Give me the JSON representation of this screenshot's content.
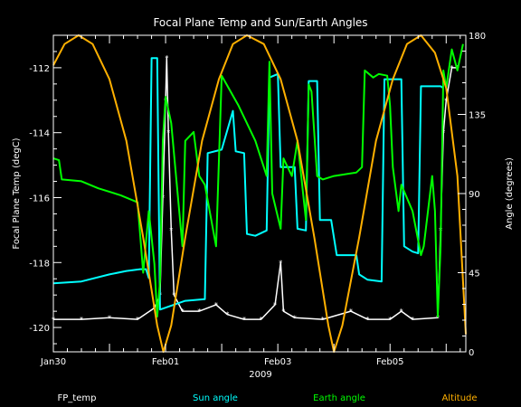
{
  "chart_data": {
    "type": "line",
    "title": "Focal Plane Temp and Sun/Earth Angles",
    "xlabel": "2009",
    "ylabel": "Focal Plane Temp (degC)",
    "y2label": "Angle (degrees)",
    "x_tick_labels": [
      "Jan30",
      "Feb01",
      "Feb03",
      "Feb05"
    ],
    "x_range_days_from_jan30": [
      0,
      7.35
    ],
    "ylim": [
      -120.75,
      -111.0
    ],
    "y_ticks": [
      -112,
      -114,
      -116,
      -118,
      -120
    ],
    "y2lim": [
      0,
      180
    ],
    "y2_ticks": [
      0,
      45,
      90,
      135,
      180
    ],
    "grid": false,
    "series": [
      {
        "name": "FP_temp",
        "color": "#ffffff",
        "axis": "left",
        "marker": "asterisk",
        "points": [
          [
            0.0,
            -119.75
          ],
          [
            0.5,
            -119.75
          ],
          [
            1.0,
            -119.7
          ],
          [
            1.5,
            -119.75
          ],
          [
            1.8,
            -119.4
          ],
          [
            1.9,
            -119.0
          ],
          [
            1.95,
            -116.0
          ],
          [
            2.0,
            -113.0
          ],
          [
            2.02,
            -111.7
          ],
          [
            2.05,
            -114.0
          ],
          [
            2.1,
            -117.0
          ],
          [
            2.15,
            -119.0
          ],
          [
            2.3,
            -119.5
          ],
          [
            2.6,
            -119.5
          ],
          [
            2.9,
            -119.3
          ],
          [
            3.1,
            -119.6
          ],
          [
            3.4,
            -119.75
          ],
          [
            3.7,
            -119.75
          ],
          [
            3.95,
            -119.3
          ],
          [
            4.05,
            -118.0
          ],
          [
            4.1,
            -119.5
          ],
          [
            4.3,
            -119.7
          ],
          [
            4.8,
            -119.75
          ],
          [
            5.3,
            -119.5
          ],
          [
            5.6,
            -119.75
          ],
          [
            6.0,
            -119.75
          ],
          [
            6.2,
            -119.5
          ],
          [
            6.4,
            -119.75
          ],
          [
            6.85,
            -119.7
          ],
          [
            6.9,
            -117.0
          ],
          [
            6.95,
            -114.0
          ],
          [
            7.0,
            -113.0
          ],
          [
            7.1,
            -112.0
          ],
          [
            7.2,
            -112.0
          ]
        ]
      },
      {
        "name": "Sun angle",
        "color": "#00ffff",
        "axis": "right",
        "points": [
          [
            0.0,
            39
          ],
          [
            0.5,
            40
          ],
          [
            1.0,
            44
          ],
          [
            1.3,
            46
          ],
          [
            1.55,
            47
          ],
          [
            1.65,
            47
          ],
          [
            1.7,
            42
          ],
          [
            1.75,
            167
          ],
          [
            1.85,
            167
          ],
          [
            1.9,
            24
          ],
          [
            2.35,
            29
          ],
          [
            2.7,
            30
          ],
          [
            2.75,
            113
          ],
          [
            3.0,
            115
          ],
          [
            3.2,
            137
          ],
          [
            3.25,
            114
          ],
          [
            3.4,
            113
          ],
          [
            3.45,
            67
          ],
          [
            3.6,
            66
          ],
          [
            3.8,
            69
          ],
          [
            3.85,
            156
          ],
          [
            4.0,
            158
          ],
          [
            4.05,
            105
          ],
          [
            4.3,
            105
          ],
          [
            4.35,
            70
          ],
          [
            4.5,
            69
          ],
          [
            4.55,
            154
          ],
          [
            4.7,
            154
          ],
          [
            4.75,
            75
          ],
          [
            4.95,
            75
          ],
          [
            5.05,
            55
          ],
          [
            5.4,
            55
          ],
          [
            5.45,
            44
          ],
          [
            5.6,
            41
          ],
          [
            5.85,
            40
          ],
          [
            5.9,
            155
          ],
          [
            6.2,
            155
          ],
          [
            6.25,
            60
          ],
          [
            6.4,
            57
          ],
          [
            6.5,
            56
          ],
          [
            6.55,
            151
          ],
          [
            6.9,
            151
          ],
          [
            6.95,
            150
          ]
        ]
      },
      {
        "name": "Earth angle",
        "color": "#00ff00",
        "axis": "right",
        "points": [
          [
            0.0,
            110
          ],
          [
            0.1,
            109
          ],
          [
            0.15,
            98
          ],
          [
            0.5,
            97
          ],
          [
            0.8,
            93
          ],
          [
            1.2,
            89
          ],
          [
            1.5,
            85
          ],
          [
            1.6,
            45
          ],
          [
            1.7,
            80
          ],
          [
            1.8,
            50
          ],
          [
            1.85,
            20
          ],
          [
            1.9,
            40
          ],
          [
            1.95,
            120
          ],
          [
            2.0,
            145
          ],
          [
            2.1,
            130
          ],
          [
            2.2,
            95
          ],
          [
            2.3,
            60
          ],
          [
            2.35,
            120
          ],
          [
            2.5,
            125
          ],
          [
            2.6,
            100
          ],
          [
            2.7,
            95
          ],
          [
            2.9,
            60
          ],
          [
            3.0,
            157
          ],
          [
            3.3,
            140
          ],
          [
            3.6,
            120
          ],
          [
            3.8,
            100
          ],
          [
            3.85,
            165
          ],
          [
            3.9,
            90
          ],
          [
            4.05,
            70
          ],
          [
            4.1,
            110
          ],
          [
            4.25,
            100
          ],
          [
            4.35,
            120
          ],
          [
            4.4,
            105
          ],
          [
            4.5,
            75
          ],
          [
            4.55,
            152
          ],
          [
            4.6,
            148
          ],
          [
            4.7,
            100
          ],
          [
            4.8,
            98
          ],
          [
            5.0,
            100
          ],
          [
            5.4,
            102
          ],
          [
            5.5,
            105
          ],
          [
            5.55,
            160
          ],
          [
            5.7,
            156
          ],
          [
            5.8,
            158
          ],
          [
            5.95,
            157
          ],
          [
            6.0,
            140
          ],
          [
            6.05,
            105
          ],
          [
            6.15,
            80
          ],
          [
            6.2,
            95
          ],
          [
            6.4,
            80
          ],
          [
            6.55,
            55
          ],
          [
            6.6,
            60
          ],
          [
            6.75,
            100
          ],
          [
            6.8,
            80
          ],
          [
            6.85,
            20
          ],
          [
            6.9,
            60
          ],
          [
            6.95,
            160
          ],
          [
            7.0,
            150
          ],
          [
            7.1,
            172
          ],
          [
            7.2,
            160
          ],
          [
            7.3,
            175
          ]
        ]
      },
      {
        "name": "Altitude",
        "color": "#ffb000",
        "axis": "right",
        "points": [
          [
            0.0,
            163
          ],
          [
            0.2,
            175
          ],
          [
            0.45,
            180
          ],
          [
            0.7,
            175
          ],
          [
            1.0,
            155
          ],
          [
            1.3,
            120
          ],
          [
            1.6,
            65
          ],
          [
            1.85,
            15
          ],
          [
            1.96,
            0
          ],
          [
            2.1,
            15
          ],
          [
            2.35,
            65
          ],
          [
            2.65,
            120
          ],
          [
            2.95,
            155
          ],
          [
            3.2,
            175
          ],
          [
            3.45,
            180
          ],
          [
            3.75,
            175
          ],
          [
            4.05,
            155
          ],
          [
            4.35,
            120
          ],
          [
            4.65,
            65
          ],
          [
            4.9,
            15
          ],
          [
            5.0,
            0
          ],
          [
            5.15,
            15
          ],
          [
            5.45,
            65
          ],
          [
            5.75,
            120
          ],
          [
            6.05,
            155
          ],
          [
            6.3,
            175
          ],
          [
            6.55,
            180
          ],
          [
            6.8,
            170
          ],
          [
            7.0,
            150
          ],
          [
            7.2,
            100
          ],
          [
            7.3,
            40
          ],
          [
            7.35,
            10
          ]
        ]
      }
    ]
  },
  "legend": [
    {
      "label": "FP_temp",
      "color": "#ffffff"
    },
    {
      "label": "Sun angle",
      "color": "#00ffff"
    },
    {
      "label": "Earth angle",
      "color": "#00ff00"
    },
    {
      "label": "Altitude",
      "color": "#ffb000"
    }
  ]
}
